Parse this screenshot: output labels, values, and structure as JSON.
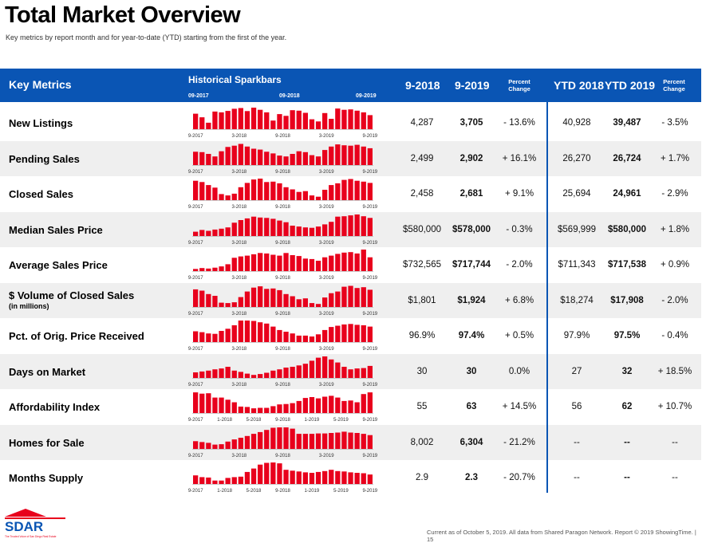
{
  "title": "Total Market Overview",
  "subtitle": "Key metrics by report month and for year-to-date (YTD) starting from the first of the year.",
  "header": {
    "key_metrics": "Key Metrics",
    "historical_sparkbars": "Historical Sparkbars",
    "spark_dates": [
      "09-2017",
      "09-2018",
      "09-2019"
    ],
    "col_2018": "9-2018",
    "col_2019": "9-2019",
    "pct_change": "Percent Change",
    "ytd_2018": "YTD 2018",
    "ytd_2019": "YTD 2019",
    "pct_change_ytd": "Percent Change"
  },
  "colors": {
    "header_blue": "#0a55b4",
    "bar_red": "#e8001c",
    "row_shade": "#efefef"
  },
  "chart_data": {
    "type": "table",
    "columns": [
      "Key Metrics",
      "Historical Sparkbars",
      "9-2018",
      "9-2019",
      "Percent Change",
      "YTD 2018",
      "YTD 2019",
      "Percent Change"
    ],
    "rows": [
      {
        "label": "New Listings",
        "sub": "",
        "v2018": "4,287",
        "v2019": "3,705",
        "pct": "- 13.6%",
        "ytd2018": "40,928",
        "ytd2019": "39,487",
        "ytdpct": "- 3.5%",
        "ticks": [
          "9-2017",
          "3-2018",
          "9-2018",
          "3-2019",
          "9-2019"
        ],
        "bars": [
          72,
          55,
          30,
          82,
          78,
          85,
          95,
          98,
          84,
          100,
          90,
          78,
          40,
          70,
          62,
          88,
          86,
          76,
          46,
          36,
          75,
          48,
          96,
          90,
          92,
          86,
          78,
          65
        ]
      },
      {
        "label": "Pending Sales",
        "sub": "",
        "v2018": "2,499",
        "v2019": "2,902",
        "pct": "+ 16.1%",
        "ytd2018": "26,270",
        "ytd2019": "26,724",
        "ytdpct": "+ 1.7%",
        "ticks": [
          "9-2017",
          "3-2018",
          "9-2018",
          "3-2019",
          "9-2019"
        ],
        "bars": [
          62,
          60,
          52,
          40,
          64,
          84,
          90,
          98,
          86,
          76,
          72,
          62,
          54,
          44,
          40,
          52,
          64,
          60,
          46,
          40,
          70,
          86,
          96,
          92,
          90,
          94,
          86,
          78
        ]
      },
      {
        "label": "Closed Sales",
        "sub": "",
        "v2018": "2,458",
        "v2019": "2,681",
        "pct": "+ 9.1%",
        "ytd2018": "25,694",
        "ytd2019": "24,961",
        "ytdpct": "- 2.9%",
        "ticks": [
          "9-2017",
          "3-2018",
          "9-2018",
          "3-2019",
          "9-2019"
        ],
        "bars": [
          90,
          84,
          70,
          58,
          28,
          22,
          30,
          60,
          80,
          96,
          100,
          84,
          86,
          78,
          60,
          50,
          38,
          42,
          22,
          16,
          48,
          70,
          78,
          94,
          98,
          90,
          86,
          80
        ]
      },
      {
        "label": "Median Sales Price",
        "sub": "",
        "v2018": "$580,000",
        "v2019": "$578,000",
        "pct": "- 0.3%",
        "ytd2018": "$569,999",
        "ytd2019": "$580,000",
        "ytdpct": "+ 1.8%",
        "ticks": [
          "9-2017",
          "3-2018",
          "9-2018",
          "3-2019",
          "9-2019"
        ],
        "bars": [
          20,
          28,
          24,
          30,
          34,
          40,
          62,
          74,
          82,
          90,
          86,
          84,
          80,
          72,
          64,
          48,
          44,
          40,
          38,
          44,
          54,
          66,
          90,
          92,
          96,
          100,
          92,
          84
        ]
      },
      {
        "label": "Average Sales Price",
        "sub": "",
        "v2018": "$732,565",
        "v2019": "$717,744",
        "pct": "- 2.0%",
        "ytd2018": "$711,343",
        "ytd2019": "$717,538",
        "ytdpct": "+ 0.9%",
        "ticks": [
          "9-2017",
          "3-2018",
          "9-2018",
          "3-2019",
          "9-2019"
        ],
        "bars": [
          10,
          14,
          12,
          16,
          22,
          32,
          62,
          68,
          72,
          78,
          84,
          82,
          76,
          72,
          84,
          74,
          70,
          58,
          56,
          48,
          64,
          72,
          80,
          86,
          88,
          82,
          100,
          64
        ]
      },
      {
        "label": "$ Volume of Closed Sales",
        "sub": "(in millions)",
        "v2018": "$1,801",
        "v2019": "$1,924",
        "pct": "+ 6.8%",
        "ytd2018": "$18,274",
        "ytd2019": "$17,908",
        "ytdpct": "- 2.0%",
        "ticks": [
          "9-2017",
          "3-2018",
          "9-2018",
          "3-2019",
          "9-2019"
        ],
        "bars": [
          82,
          76,
          60,
          52,
          20,
          18,
          22,
          46,
          72,
          90,
          96,
          84,
          86,
          78,
          60,
          50,
          36,
          40,
          18,
          14,
          44,
          64,
          72,
          94,
          98,
          88,
          92,
          80
        ]
      },
      {
        "label": "Pct. of Orig. Price Received",
        "sub": "",
        "v2018": "96.9%",
        "v2019": "97.4%",
        "pct": "+ 0.5%",
        "ytd2018": "97.9%",
        "ytd2019": "97.5%",
        "ytdpct": "- 0.4%",
        "ticks": [
          "9-2017",
          "3-2018",
          "9-2018",
          "3-2019",
          "9-2019"
        ],
        "bars": [
          50,
          46,
          40,
          38,
          52,
          62,
          78,
          100,
          100,
          98,
          92,
          86,
          72,
          56,
          48,
          40,
          30,
          30,
          26,
          36,
          56,
          70,
          76,
          82,
          84,
          80,
          78,
          72
        ]
      },
      {
        "label": "Days on Market",
        "sub": "",
        "v2018": "30",
        "v2019": "30",
        "pct": "0.0%",
        "ytd2018": "27",
        "ytd2019": "32",
        "ytdpct": "+ 18.5%",
        "ticks": [
          "9-2017",
          "3-2018",
          "9-2018",
          "3-2019",
          "9-2019"
        ],
        "bars": [
          26,
          30,
          34,
          40,
          44,
          52,
          34,
          28,
          20,
          14,
          18,
          24,
          34,
          40,
          48,
          52,
          58,
          66,
          80,
          94,
          100,
          86,
          72,
          52,
          40,
          44,
          46,
          56
        ]
      },
      {
        "label": "Affordability Index",
        "sub": "",
        "v2018": "55",
        "v2019": "63",
        "pct": "+ 14.5%",
        "ticks": [
          "9-2017",
          "1-2018",
          "5-2018",
          "9-2018",
          "1-2019",
          "5-2019",
          "9-2019"
        ],
        "ytd2018": "56",
        "ytd2019": "62",
        "ytdpct": "+ 10.7%",
        "bars": [
          96,
          90,
          92,
          72,
          72,
          62,
          50,
          30,
          28,
          22,
          24,
          24,
          32,
          40,
          42,
          46,
          56,
          70,
          74,
          68,
          76,
          80,
          72,
          56,
          58,
          50,
          88,
          96
        ]
      },
      {
        "label": "Homes for Sale",
        "sub": "",
        "v2018": "8,002",
        "v2019": "6,304",
        "pct": "- 21.2%",
        "ytd2018": "--",
        "ytd2019": "--",
        "ytdpct": "--",
        "ticks": [
          "9-2017",
          "3-2018",
          "9-2018",
          "3-2019",
          "9-2019"
        ],
        "bars": [
          36,
          32,
          28,
          20,
          22,
          34,
          44,
          52,
          60,
          70,
          78,
          88,
          98,
          100,
          100,
          94,
          70,
          70,
          70,
          72,
          72,
          74,
          76,
          80,
          76,
          74,
          70,
          64
        ]
      },
      {
        "label": "Months Supply",
        "sub": "",
        "v2018": "2.9",
        "v2019": "2.3",
        "pct": "- 20.7%",
        "ytd2018": "--",
        "ytd2019": "--",
        "ytdpct": "--",
        "ticks": [
          "9-2017",
          "1-2018",
          "5-2018",
          "9-2018",
          "1-2019",
          "5-2019",
          "9-2019"
        ],
        "bars": [
          40,
          32,
          30,
          16,
          16,
          28,
          32,
          34,
          56,
          72,
          90,
          98,
          100,
          96,
          66,
          62,
          58,
          54,
          52,
          56,
          60,
          66,
          60,
          58,
          54,
          52,
          50,
          44
        ]
      }
    ]
  },
  "footer": "Current as of October 5, 2019. All data from Shared Paragon Network. Report © 2019 ShowingTime.  |  15",
  "logo": {
    "text": "SDAR",
    "tagline": "The Trusted Voice of San Diego Real Estate"
  }
}
